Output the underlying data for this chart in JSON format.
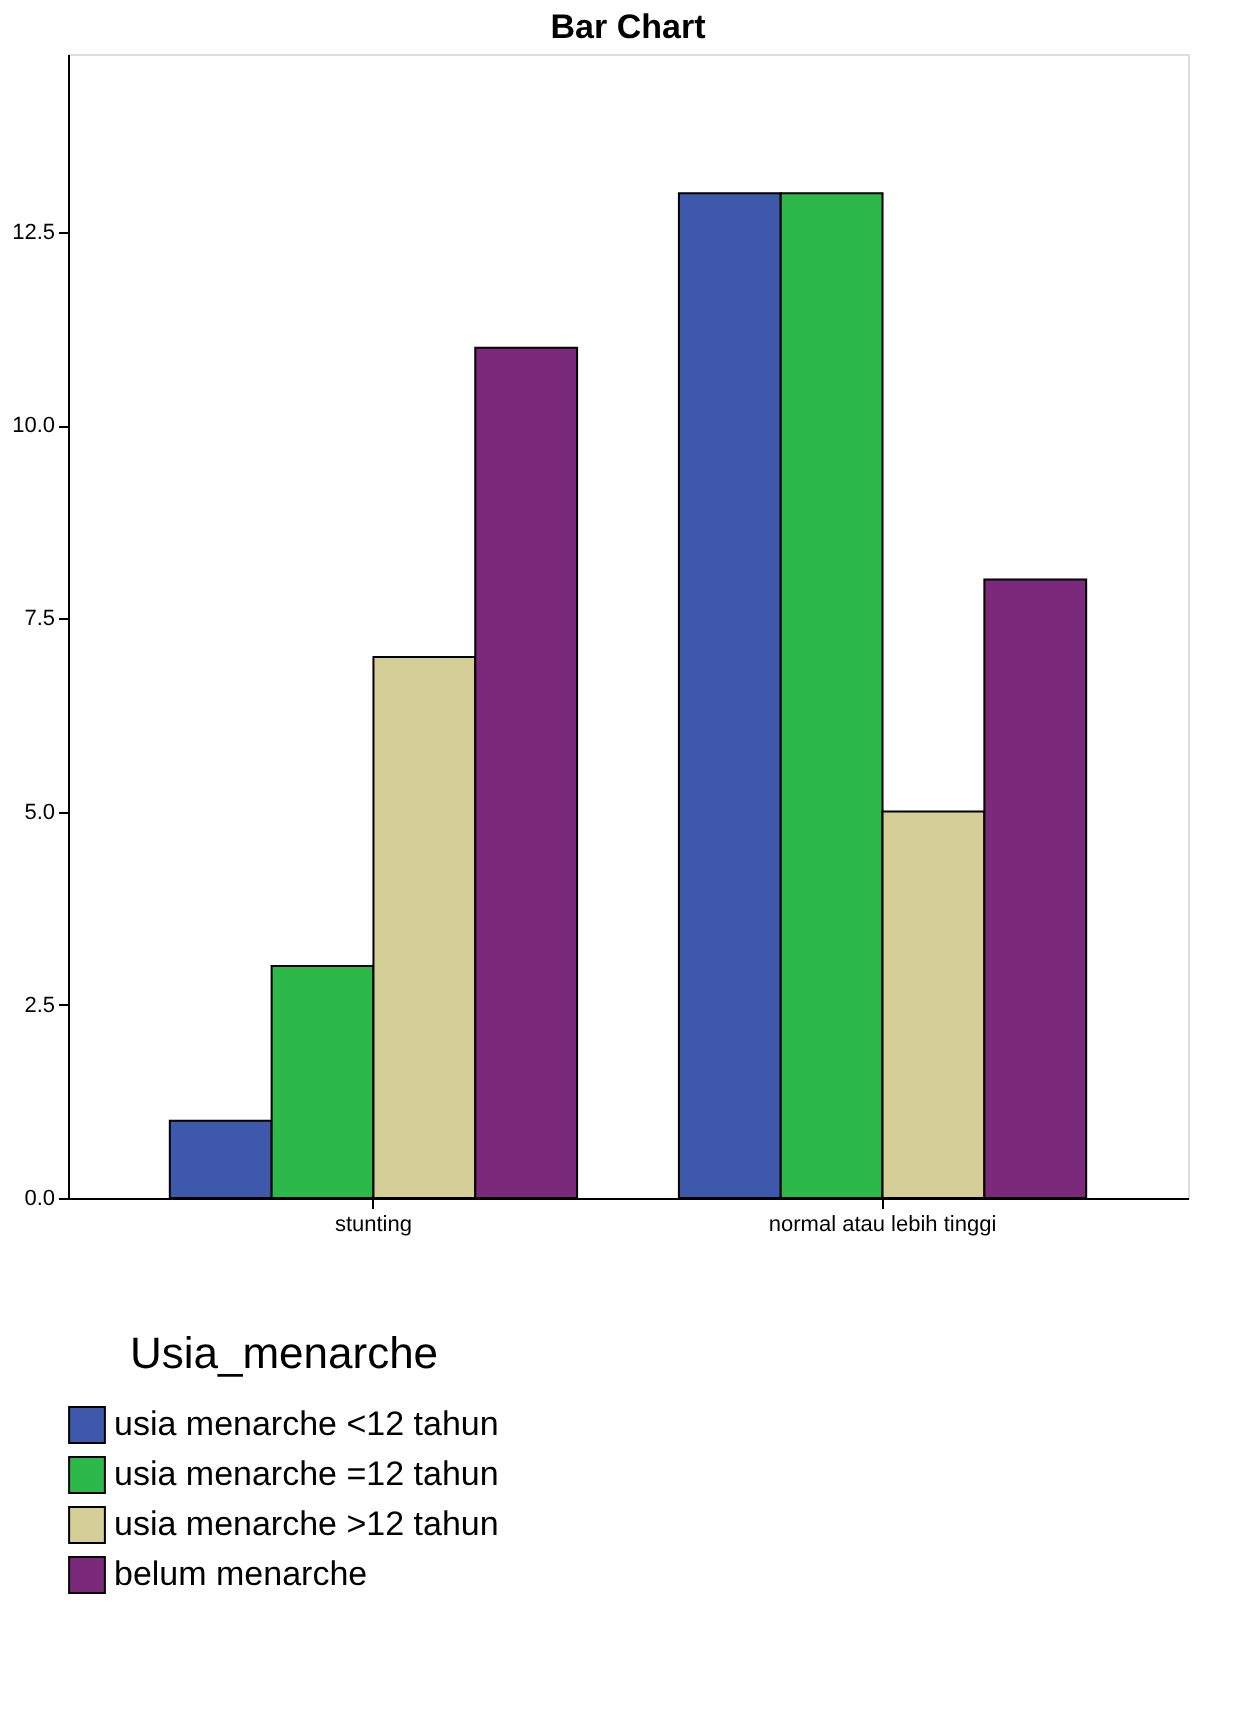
{
  "chart_data": {
    "type": "bar",
    "title": "Bar Chart",
    "categories": [
      "stunting",
      "normal atau lebih tinggi"
    ],
    "series": [
      {
        "name": "usia menarche <12 tahun",
        "color": "#3e58ac",
        "values": [
          1,
          13
        ]
      },
      {
        "name": "usia menarche =12 tahun",
        "color": "#2db84a",
        "values": [
          3,
          13
        ]
      },
      {
        "name": "usia menarche >12 tahun",
        "color": "#d4cf96",
        "values": [
          7,
          5
        ]
      },
      {
        "name": "belum menarche",
        "color": "#7b2a7b",
        "values": [
          11,
          8
        ]
      }
    ],
    "legend_title": "Usia_menarche",
    "legend": "bottom",
    "grid": false,
    "ylim": [
      0,
      14.8
    ],
    "yticks": [
      {
        "value": 0,
        "label": "0.0"
      },
      {
        "value": 2.5,
        "label": "2.5"
      },
      {
        "value": 5,
        "label": "5.0"
      },
      {
        "value": 7.5,
        "label": "7.5"
      },
      {
        "value": 10,
        "label": "10.0"
      },
      {
        "value": 12.5,
        "label": "12.5"
      }
    ]
  }
}
